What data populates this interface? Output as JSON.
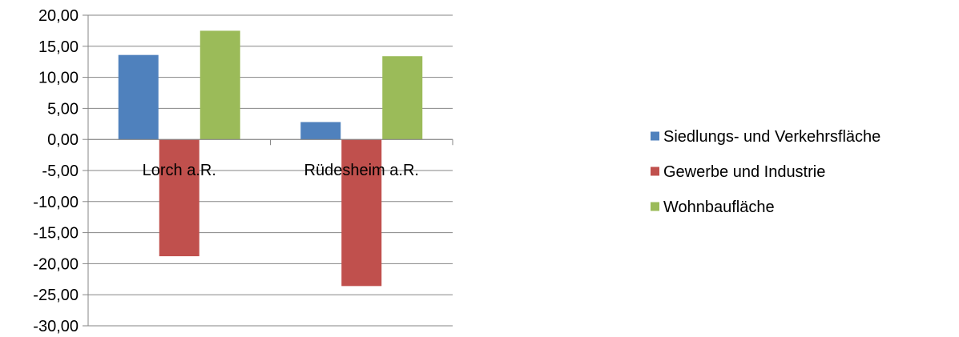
{
  "chart_data": {
    "type": "bar",
    "categories": [
      "Lorch a.R.",
      "Rüdesheim a.R."
    ],
    "series": [
      {
        "name": "Siedlungs- und Verkehrsfläche",
        "color": "#4f81bd",
        "values": [
          13.6,
          2.8
        ]
      },
      {
        "name": "Gewerbe und Industrie",
        "color": "#c0504d",
        "values": [
          -18.8,
          -23.6
        ]
      },
      {
        "name": "Wohnbaufläche",
        "color": "#9bbb59",
        "values": [
          17.5,
          13.4
        ]
      }
    ],
    "ylim": [
      -30,
      20
    ],
    "yticks": [
      "20,00",
      "15,00",
      "10,00",
      "5,00",
      "0,00",
      "-5,00",
      "-10,00",
      "-15,00",
      "-20,00",
      "-25,00",
      "-30,00"
    ],
    "ytick_values": [
      20,
      15,
      10,
      5,
      0,
      -5,
      -10,
      -15,
      -20,
      -25,
      -30
    ],
    "grid": true,
    "legend_position": "right",
    "title": "",
    "xlabel": "",
    "ylabel": ""
  }
}
